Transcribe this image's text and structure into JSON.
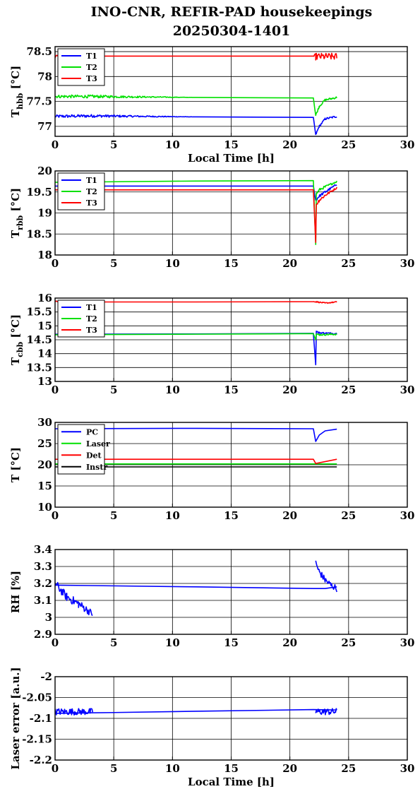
{
  "figure": {
    "title_line1": "INO-CNR, REFIR-PAD housekeepings",
    "title_line2": "20250304-1401"
  },
  "chart_data": [
    {
      "type": "line",
      "ylabel": "T",
      "ylabel_sub": "hbb",
      "ylabel_unit": " [°C]",
      "xlabel": "Local Time [h]",
      "xlim": [
        0,
        30
      ],
      "ylim": [
        76.8,
        78.6
      ],
      "xticks": [
        0,
        5,
        10,
        15,
        20,
        25,
        30
      ],
      "yticks": [
        77,
        77.5,
        78,
        78.5
      ],
      "grid": true,
      "legend": "top-left",
      "series": [
        {
          "name": "T1",
          "color": "#0000ff",
          "x": [
            0,
            3.2,
            12,
            22,
            22.2,
            22.5,
            23,
            24
          ],
          "y": [
            77.2,
            77.21,
            77.19,
            77.18,
            76.83,
            77.0,
            77.15,
            77.2
          ],
          "noise": [
            0.03,
            0.03,
            0,
            0,
            0.02,
            0.02,
            0.02,
            0.02
          ]
        },
        {
          "name": "T2",
          "color": "#00e000",
          "x": [
            0,
            3.2,
            12,
            22,
            22.2,
            22.5,
            23,
            24
          ],
          "y": [
            77.6,
            77.6,
            77.58,
            77.57,
            77.22,
            77.4,
            77.53,
            77.58
          ],
          "noise": [
            0.03,
            0.03,
            0,
            0,
            0.02,
            0.02,
            0.02,
            0.02
          ]
        },
        {
          "name": "T3",
          "color": "#ff0000",
          "x": [
            0,
            3.2,
            12,
            22,
            22.2,
            24
          ],
          "y": [
            78.4,
            78.41,
            78.41,
            78.41,
            78.4,
            78.4
          ],
          "noise": [
            0.04,
            0,
            0,
            0,
            0.07,
            0.07
          ]
        }
      ]
    },
    {
      "type": "line",
      "ylabel": "T",
      "ylabel_sub": "rbb",
      "ylabel_unit": " [°C]",
      "xlabel": "",
      "xlim": [
        0,
        30
      ],
      "ylim": [
        18,
        20
      ],
      "xticks": [
        0,
        5,
        10,
        15,
        20,
        25,
        30
      ],
      "yticks": [
        18,
        18.5,
        19,
        19.5,
        20
      ],
      "grid": true,
      "legend": "top-left",
      "series": [
        {
          "name": "T1",
          "color": "#0000ff",
          "x": [
            0,
            12,
            22,
            22.2,
            22.5,
            23,
            24
          ],
          "y": [
            19.64,
            19.64,
            19.64,
            19.3,
            19.4,
            19.5,
            19.68
          ],
          "noise": [
            0,
            0,
            0,
            0.03,
            0.03,
            0.03,
            0.02
          ]
        },
        {
          "name": "T2",
          "color": "#00e000",
          "x": [
            0,
            12,
            22,
            22.2,
            22.25,
            22.5,
            23,
            24
          ],
          "y": [
            19.73,
            19.76,
            19.77,
            18.25,
            19.45,
            19.55,
            19.62,
            19.75
          ],
          "noise": [
            0,
            0,
            0,
            0,
            0.03,
            0.03,
            0.03,
            0.02
          ]
        },
        {
          "name": "T3",
          "color": "#ff0000",
          "x": [
            0,
            12,
            22,
            22.2,
            22.25,
            22.5,
            23,
            24
          ],
          "y": [
            19.55,
            19.55,
            19.55,
            18.3,
            19.2,
            19.3,
            19.42,
            19.6
          ],
          "noise": [
            0,
            0,
            0,
            0,
            0.04,
            0.04,
            0.03,
            0.02
          ]
        }
      ]
    },
    {
      "type": "line",
      "ylabel": "T",
      "ylabel_sub": "cbb",
      "ylabel_unit": " [°C]",
      "xlabel": "",
      "xlim": [
        0,
        30
      ],
      "ylim": [
        13,
        16
      ],
      "xticks": [
        0,
        5,
        10,
        15,
        20,
        25,
        30
      ],
      "yticks": [
        13,
        13.5,
        14,
        14.5,
        15,
        15.5,
        16
      ],
      "grid": true,
      "legend": "top-left",
      "series": [
        {
          "name": "T1",
          "color": "#0000ff",
          "x": [
            0,
            12,
            22,
            22.2,
            22.25,
            22.5,
            24
          ],
          "y": [
            14.7,
            14.71,
            14.73,
            13.6,
            14.8,
            14.75,
            14.72
          ],
          "noise": [
            0,
            0,
            0,
            0,
            0.03,
            0.03,
            0.03
          ]
        },
        {
          "name": "T2",
          "color": "#00e000",
          "x": [
            0,
            12,
            22,
            22.2,
            22.25,
            22.5,
            24
          ],
          "y": [
            14.68,
            14.7,
            14.72,
            14.5,
            14.7,
            14.68,
            14.7
          ],
          "noise": [
            0,
            0,
            0,
            0,
            0.03,
            0.03,
            0.03
          ]
        },
        {
          "name": "T3",
          "color": "#ff0000",
          "x": [
            0,
            3.2,
            12,
            22,
            22.2,
            23,
            24
          ],
          "y": [
            15.88,
            15.86,
            15.86,
            15.87,
            15.87,
            15.82,
            15.86
          ],
          "noise": [
            0.02,
            0,
            0,
            0,
            0.02,
            0.02,
            0.02
          ]
        }
      ]
    },
    {
      "type": "line",
      "ylabel": "T",
      "ylabel_sub": "",
      "ylabel_unit": " [°C]",
      "xlabel": "",
      "xlim": [
        0,
        30
      ],
      "ylim": [
        10,
        30
      ],
      "xticks": [
        0,
        5,
        10,
        15,
        20,
        25,
        30
      ],
      "yticks": [
        10,
        15,
        20,
        25,
        30
      ],
      "grid": true,
      "legend": "top-left",
      "series": [
        {
          "name": "PC",
          "color": "#0000ff",
          "x": [
            0,
            12,
            22,
            22.2,
            22.5,
            23,
            24
          ],
          "y": [
            28.5,
            28.6,
            28.5,
            25.5,
            27.0,
            28.0,
            28.4
          ],
          "noise": [
            0,
            0,
            0,
            0,
            0,
            0,
            0
          ]
        },
        {
          "name": "Laser",
          "color": "#00e000",
          "x": [
            0,
            24
          ],
          "y": [
            20.2,
            20.2
          ],
          "noise": [
            0,
            0
          ]
        },
        {
          "name": "Det",
          "color": "#ff0000",
          "x": [
            0,
            22,
            22.2,
            24
          ],
          "y": [
            21.3,
            21.3,
            20.3,
            21.3
          ],
          "noise": [
            0,
            0,
            0,
            0
          ]
        },
        {
          "name": "Instr",
          "color": "#000000",
          "x": [
            0,
            24
          ],
          "y": [
            19.5,
            19.5
          ],
          "noise": [
            0,
            0
          ]
        }
      ]
    },
    {
      "type": "line",
      "ylabel": "RH [%]",
      "ylabel_sub": "",
      "ylabel_unit": "",
      "xlabel": "",
      "xlim": [
        0,
        30
      ],
      "ylim": [
        2.9,
        3.4
      ],
      "xticks": [
        0,
        5,
        10,
        15,
        20,
        25,
        30
      ],
      "yticks": [
        2.9,
        3,
        3.1,
        3.2,
        3.3,
        3.4
      ],
      "grid": true,
      "legend": "none",
      "series": [
        {
          "name": "",
          "color": "#0000ff",
          "x": [
            0,
            12,
            22,
            22.2,
            23,
            24
          ],
          "y": [
            3.19,
            3.18,
            3.17,
            3.17,
            3.17,
            3.18
          ],
          "noise": [
            0,
            0,
            0,
            0,
            0,
            0
          ]
        },
        {
          "name": "",
          "color": "#0000ff",
          "x": [
            0,
            1,
            2,
            3.2
          ],
          "y": [
            3.2,
            3.12,
            3.08,
            3.02
          ],
          "noise": [
            0.025,
            0.025,
            0.025,
            0.02
          ]
        },
        {
          "name": "",
          "color": "#0000ff",
          "x": [
            22.2,
            22.5,
            23,
            23.5,
            24
          ],
          "y": [
            3.32,
            3.27,
            3.22,
            3.19,
            3.17
          ],
          "noise": [
            0.02,
            0.02,
            0.02,
            0.02,
            0.02
          ]
        }
      ]
    },
    {
      "type": "line",
      "ylabel": "Laser error [a.u.]",
      "ylabel_sub": "",
      "ylabel_unit": "",
      "xlabel": "Local Time [h]",
      "xlim": [
        0,
        30
      ],
      "ylim": [
        -2.2,
        -2
      ],
      "xticks": [
        0,
        5,
        10,
        15,
        20,
        25,
        30
      ],
      "yticks": [
        -2.2,
        -2.15,
        -2.1,
        -2.05,
        -2
      ],
      "grid": true,
      "legend": "none",
      "series": [
        {
          "name": "",
          "color": "#0000ff",
          "x": [
            0,
            5,
            12,
            22,
            24
          ],
          "y": [
            -2.088,
            -2.086,
            -2.083,
            -2.079,
            -2.08
          ],
          "noise": [
            0,
            0,
            0,
            0,
            0
          ]
        },
        {
          "name": "",
          "color": "#0000ff",
          "x": [
            0,
            3.2
          ],
          "y": [
            -2.084,
            -2.084
          ],
          "noise": [
            0.008,
            0.008
          ]
        },
        {
          "name": "",
          "color": "#0000ff",
          "x": [
            22.2,
            24
          ],
          "y": [
            -2.084,
            -2.084
          ],
          "noise": [
            0.008,
            0.008
          ]
        }
      ]
    }
  ]
}
